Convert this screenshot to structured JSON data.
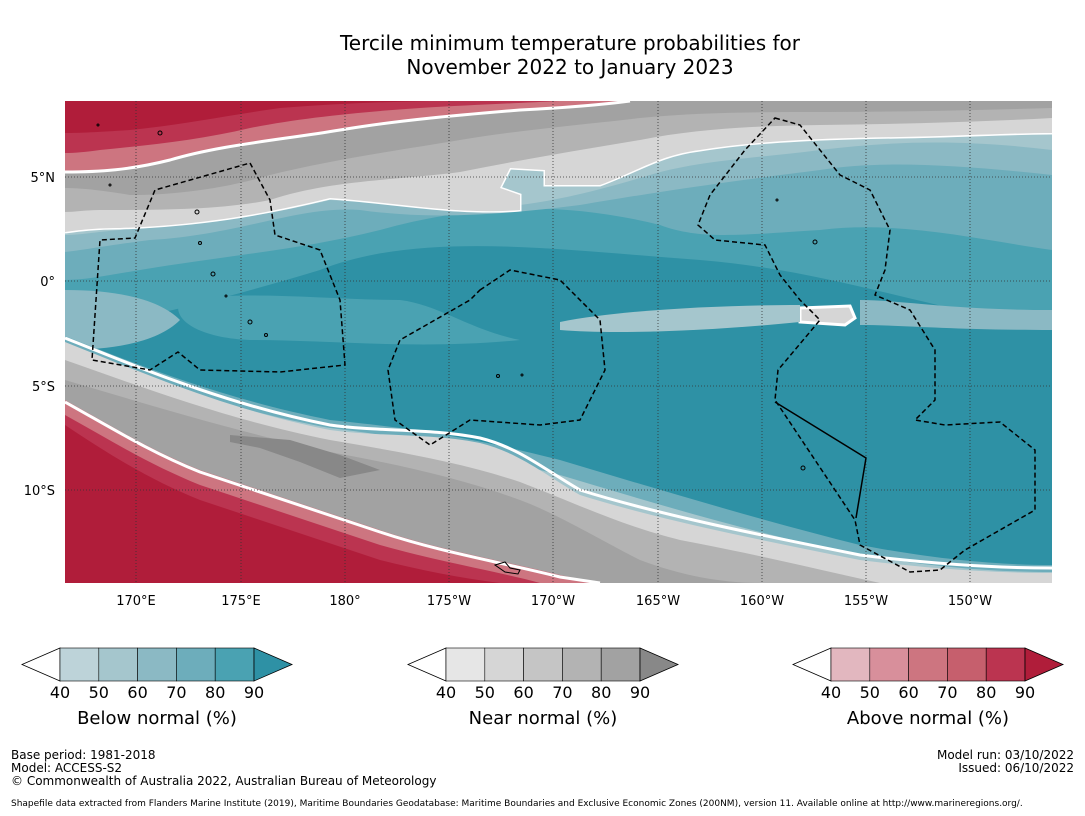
{
  "title_line1": "Tercile minimum temperature probabilities for",
  "title_line2": "November 2022 to January 2023",
  "map": {
    "lat_labels": [
      "5°N",
      "0°",
      "5°S",
      "10°S"
    ],
    "lon_labels": [
      "170°E",
      "175°E",
      "180°",
      "175°W",
      "170°W",
      "165°W",
      "160°W",
      "155°W",
      "150°W"
    ]
  },
  "colorbars": [
    {
      "name": "below",
      "label": "Below normal (%)",
      "ticks": [
        "40",
        "50",
        "60",
        "70",
        "80",
        "90"
      ],
      "colors": [
        "#ffffff",
        "#bdd3d9",
        "#a5c6cd",
        "#8bb9c4",
        "#6dadbb",
        "#4aa2b2",
        "#2e91a5"
      ]
    },
    {
      "name": "near",
      "label": "Near normal (%)",
      "ticks": [
        "40",
        "50",
        "60",
        "70",
        "80",
        "90"
      ],
      "colors": [
        "#ffffff",
        "#e6e6e6",
        "#d6d6d6",
        "#c5c5c5",
        "#b3b3b3",
        "#a2a2a2",
        "#888888"
      ]
    },
    {
      "name": "above",
      "label": "Above normal (%)",
      "ticks": [
        "40",
        "50",
        "60",
        "70",
        "80",
        "90"
      ],
      "colors": [
        "#ffffff",
        "#e2b7bf",
        "#d88f9b",
        "#cd7580",
        "#c65f6d",
        "#bb3450",
        "#b01d3a"
      ]
    }
  ],
  "footer": {
    "base_period": "Base period: 1981-2018",
    "model": "Model: ACCESS-S2",
    "copyright": "© Commonwealth of Australia 2022, Australian Bureau of Meteorology",
    "model_run": "Model run: 03/10/2022",
    "issued": "Issued: 06/10/2022",
    "shapefile": "Shapefile data extracted from Flanders Marine Institute (2019), Maritime Boundaries Geodatabase: Maritime Boundaries and Exclusive Economic Zones (200NM), version 11. Available online at http://www.marineregions.org/."
  }
}
